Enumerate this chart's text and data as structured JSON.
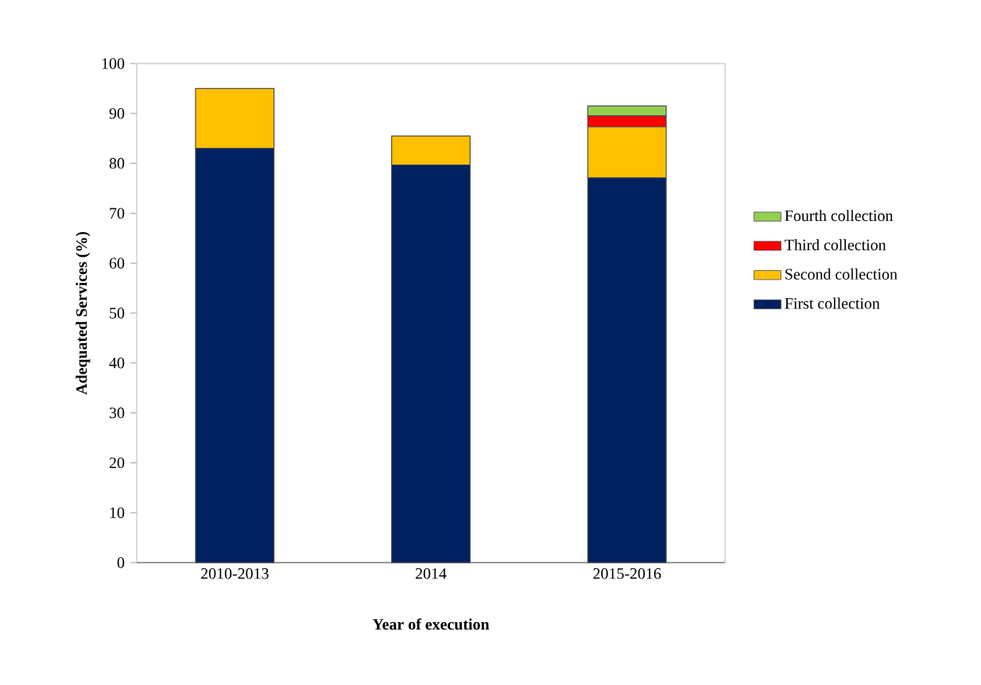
{
  "chart_data": {
    "type": "bar",
    "stacked": true,
    "xlabel": "Year of execution",
    "ylabel": "Adequated Services (%)",
    "categories": [
      "2010-2013",
      "2014",
      "2015-2016"
    ],
    "series": [
      {
        "name": "First collection",
        "color": "#002060",
        "values": [
          83,
          79.7,
          77.1
        ]
      },
      {
        "name": "Second collection",
        "color": "#ffc000",
        "values": [
          12,
          5.8,
          10.2
        ]
      },
      {
        "name": "Third collection",
        "color": "#ff0000",
        "values": [
          null,
          null,
          2.2
        ]
      },
      {
        "name": "Fourth collection",
        "color": "#92d050",
        "values": [
          null,
          null,
          2.0
        ]
      }
    ],
    "ylim": [
      0,
      100
    ],
    "yticks": [
      0,
      10,
      20,
      30,
      40,
      50,
      60,
      70,
      80,
      90,
      100
    ],
    "legend": "right"
  }
}
